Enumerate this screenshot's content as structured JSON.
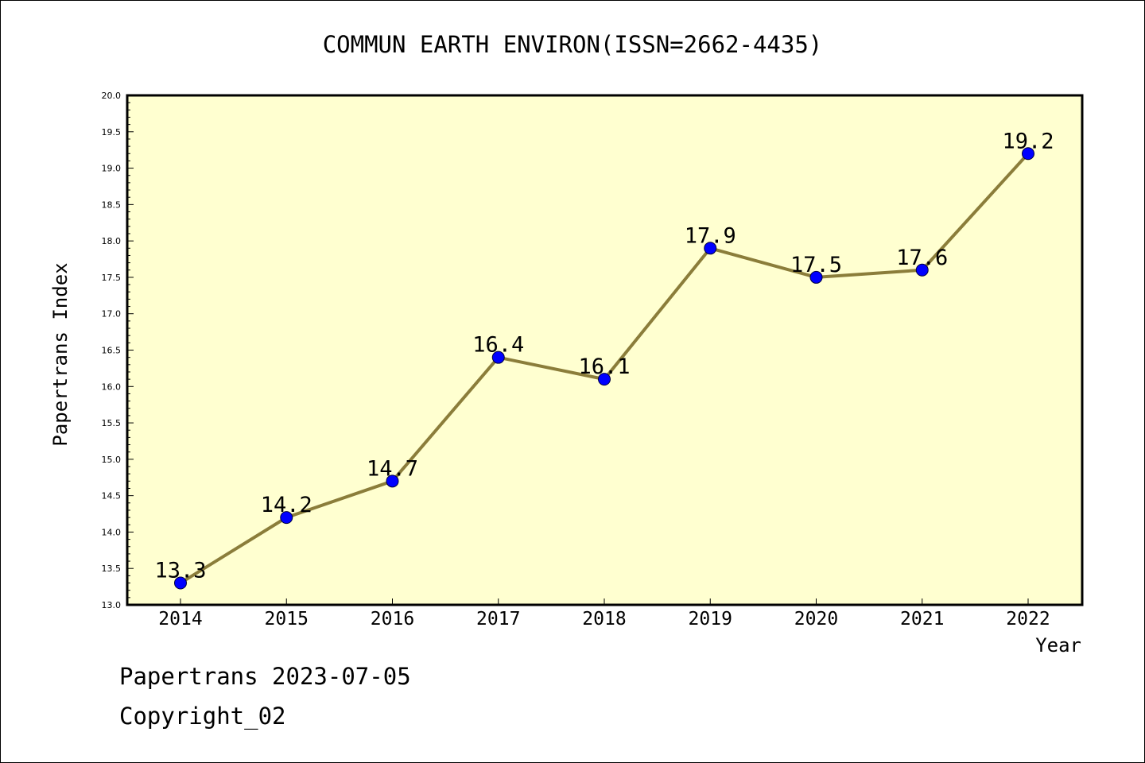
{
  "chart_data": {
    "type": "line",
    "title": "COMMUN EARTH ENVIRON(ISSN=2662-4435)",
    "xlabel": "Year",
    "ylabel": "Papertrans Index",
    "categories": [
      "2014",
      "2015",
      "2016",
      "2017",
      "2018",
      "2019",
      "2020",
      "2021",
      "2022"
    ],
    "series": [
      {
        "values": [
          13.3,
          14.2,
          14.7,
          16.4,
          16.1,
          17.9,
          17.5,
          17.6,
          19.2
        ],
        "data_labels": [
          "13.3",
          "14.2",
          "14.7",
          "16.4",
          "16.1",
          "17.9",
          "17.5",
          "17.6",
          "19.2"
        ]
      }
    ],
    "ylim": [
      13.0,
      20.0
    ],
    "yticks": [
      "13.0",
      "13.5",
      "14.0",
      "14.5",
      "15.0",
      "15.5",
      "16.0",
      "16.5",
      "17.0",
      "17.5",
      "18.0",
      "18.5",
      "19.0",
      "19.5",
      "20.0"
    ],
    "grid": false,
    "colors": {
      "plot_background": "#ffffd0",
      "line": "#8b7d3a",
      "marker": "#0000ff"
    }
  },
  "footer": {
    "brand": "Papertrans 2023-07-05",
    "copyright": "Copyright_02"
  }
}
